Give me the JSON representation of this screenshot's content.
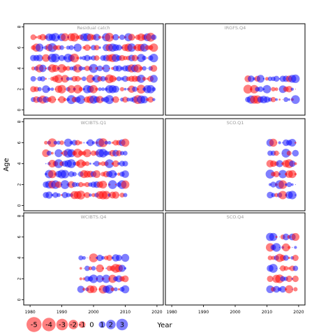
{
  "chart_data": {
    "type": "scatter",
    "kind": "residual-bubble-grid",
    "xlabel": "Year",
    "ylabel": "Age",
    "xlim": [
      1978,
      2022
    ],
    "ylim": [
      -0.5,
      8.3
    ],
    "x_ticks": [
      "1980",
      "1990",
      "2000",
      "2010",
      "2020"
    ],
    "y_ticks": [
      "0",
      "2",
      "4",
      "6",
      "8"
    ],
    "positive_color": "#0000ff",
    "negative_color": "#ff0000",
    "legend": {
      "entries": [
        {
          "label": "-5",
          "value": -5
        },
        {
          "label": "-4",
          "value": -4
        },
        {
          "label": "-3",
          "value": -3
        },
        {
          "label": "-2",
          "value": -2
        },
        {
          "label": "-1",
          "value": -1
        },
        {
          "label": "0",
          "value": 0
        },
        {
          "label": "1",
          "value": 1
        },
        {
          "label": "2",
          "value": 2
        },
        {
          "label": "3",
          "value": 3
        }
      ]
    },
    "panels": [
      {
        "title": "Residual catch",
        "years": [
          1981,
          2019
        ],
        "ages": [
          1,
          7
        ]
      },
      {
        "title": "IRGFS.Q4",
        "years": [
          2004,
          2019
        ],
        "ages": [
          1,
          3
        ]
      },
      {
        "title": "WCIBTS.Q1",
        "years": [
          1985,
          2010
        ],
        "ages": [
          1,
          6
        ]
      },
      {
        "title": "SCO.Q1",
        "years": [
          2011,
          2019
        ],
        "ages": [
          1,
          6
        ]
      },
      {
        "title": "WCIBTS.Q4",
        "years": [
          1996,
          2010
        ],
        "ages": [
          1,
          4
        ]
      },
      {
        "title": "SCO.Q4",
        "years": [
          2011,
          2019
        ],
        "ages": [
          1,
          6
        ]
      }
    ],
    "residual_values_note": ""
  }
}
